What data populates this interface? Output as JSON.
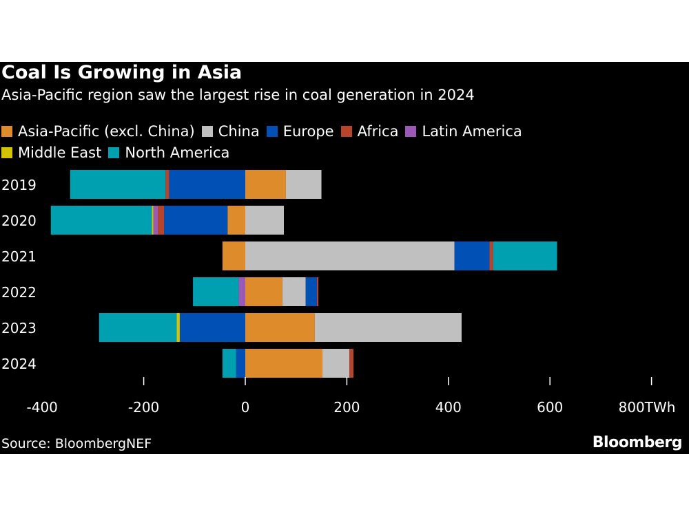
{
  "chart_data": {
    "type": "bar",
    "orientation": "horizontal",
    "stacked": true,
    "title": "Coal Is Growing in Asia",
    "subtitle": "Asia-Pacific region saw the largest rise in coal generation in 2024",
    "categories": [
      "2019",
      "2020",
      "2021",
      "2022",
      "2023",
      "2024"
    ],
    "series": [
      {
        "name": "Asia-Pacific (excl. China)",
        "color": "#dd8b2b",
        "values": [
          80,
          -35,
          -45,
          73,
          137,
          152
        ]
      },
      {
        "name": "China",
        "color": "#c0c0c0",
        "values": [
          70,
          76,
          412,
          46,
          289,
          53
        ]
      },
      {
        "name": "Europe",
        "color": "#0050b5",
        "values": [
          -150,
          -125,
          69,
          22,
          -129,
          -18
        ]
      },
      {
        "name": "Africa",
        "color": "#b8452a",
        "values": [
          -7,
          -12,
          7,
          3,
          0,
          8
        ]
      },
      {
        "name": "Latin America",
        "color": "#9b59b6",
        "values": [
          0,
          -9,
          0,
          -13,
          0,
          0
        ]
      },
      {
        "name": "Middle East",
        "color": "#d4c400",
        "values": [
          0,
          -3,
          0,
          0,
          -6,
          0
        ]
      },
      {
        "name": "North America",
        "color": "#00a0b0",
        "values": [
          -188,
          -199,
          126,
          -90,
          -153,
          -27
        ]
      }
    ],
    "xlim": [
      -400,
      800
    ],
    "xticks": [
      "-400",
      "-200",
      "0",
      "200",
      "400",
      "600",
      "800TWh"
    ],
    "xtick_values": [
      -400,
      -200,
      0,
      200,
      400,
      600,
      800
    ],
    "unit": "TWh",
    "grid": false,
    "legend_position": "top"
  },
  "source": "Source: BloombergNEF",
  "logo": "Bloomberg"
}
